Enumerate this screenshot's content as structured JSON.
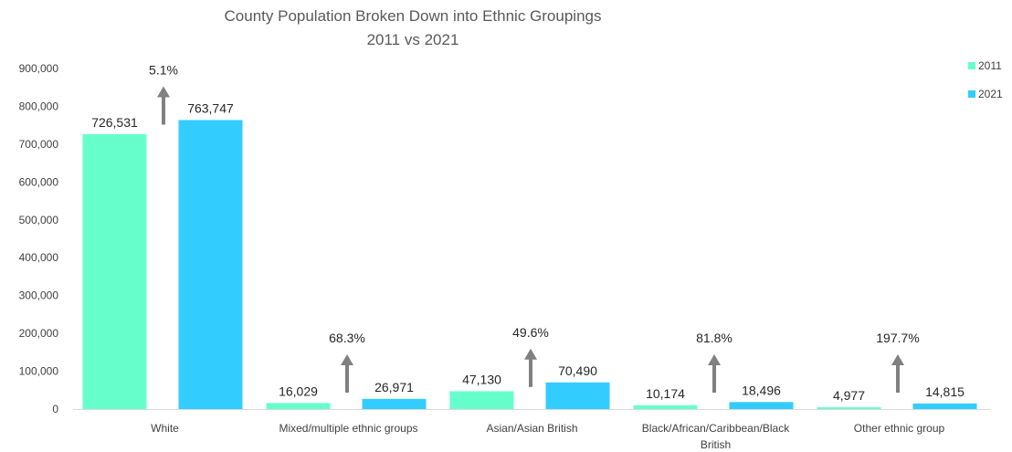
{
  "chart_data": {
    "type": "bar",
    "title": "County Population Broken Down into Ethnic Groupings",
    "subtitle": "2011 vs 2021",
    "categories": [
      "White",
      "Mixed/multiple ethnic groups",
      "Asian/Asian British",
      "Black/African/Caribbean/Black British",
      "Other ethnic group"
    ],
    "category_lines": [
      [
        "White"
      ],
      [
        "Mixed/multiple ethnic groups"
      ],
      [
        "Asian/Asian British"
      ],
      [
        "Black/African/Caribbean/Black",
        "British"
      ],
      [
        "Other ethnic group"
      ]
    ],
    "series": [
      {
        "name": "2011",
        "color": "#66ffcc",
        "values": [
          726531,
          16029,
          47130,
          10174,
          4977
        ]
      },
      {
        "name": "2021",
        "color": "#33ccff",
        "values": [
          763747,
          26971,
          70490,
          18496,
          14815
        ]
      }
    ],
    "value_labels": [
      [
        "726,531",
        "16,029",
        "47,130",
        "10,174",
        "4,977"
      ],
      [
        "763,747",
        "26,971",
        "70,490",
        "18,496",
        "14,815"
      ]
    ],
    "growth_labels": [
      "5.1%",
      "68.3%",
      "49.6%",
      "81.8%",
      "197.7%"
    ],
    "ylim": [
      0,
      900000
    ],
    "yticks": [
      0,
      100000,
      200000,
      300000,
      400000,
      500000,
      600000,
      700000,
      800000,
      900000
    ],
    "ytick_labels": [
      "0",
      "100,000",
      "200,000",
      "300,000",
      "400,000",
      "500,000",
      "600,000",
      "700,000",
      "800,000",
      "900,000"
    ],
    "legend_position": "top-right",
    "arrow_color": "#808080",
    "grid": false
  }
}
